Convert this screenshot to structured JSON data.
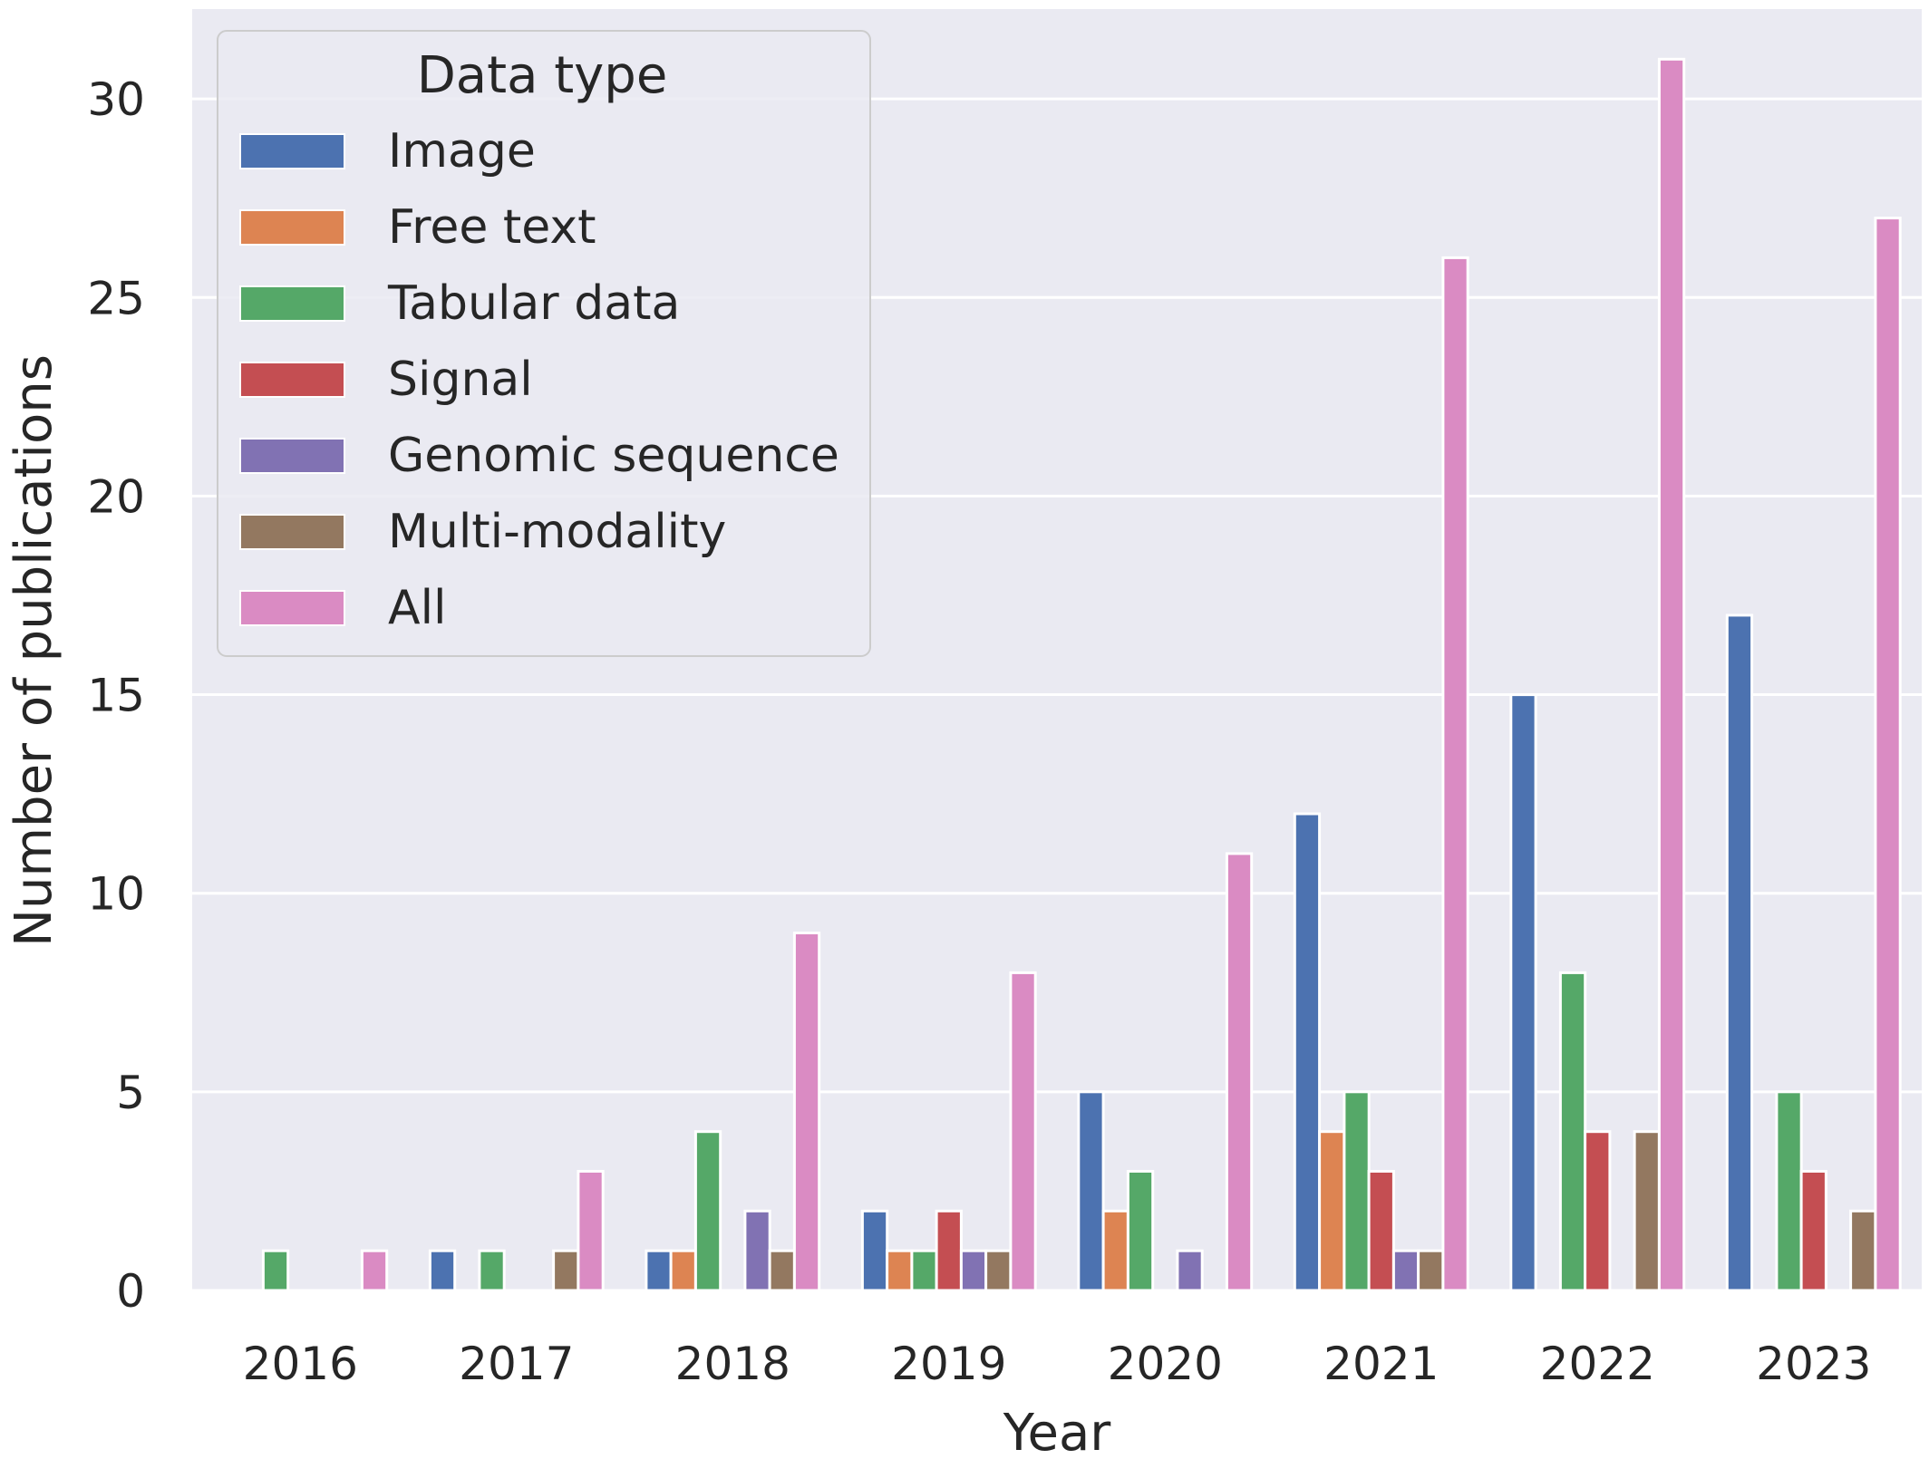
{
  "chart_data": {
    "type": "bar",
    "xlabel": "Year",
    "ylabel": "Number of publications",
    "ylim": [
      0,
      32.5
    ],
    "yticks": [
      0,
      5,
      10,
      15,
      20,
      25,
      30
    ],
    "grid": true,
    "legend_title": "Data type",
    "legend_position": "top-left",
    "background": "#eaeaf2",
    "categories": [
      "2016",
      "2017",
      "2018",
      "2019",
      "2020",
      "2021",
      "2022",
      "2023"
    ],
    "series": [
      {
        "name": "Image",
        "color": "#4c72b0",
        "values": [
          0,
          1,
          1,
          2,
          5,
          12,
          15,
          17
        ]
      },
      {
        "name": "Free text",
        "color": "#dd8452",
        "values": [
          0,
          0,
          1,
          1,
          2,
          4,
          0,
          0
        ]
      },
      {
        "name": "Tabular data",
        "color": "#55a868",
        "values": [
          1,
          1,
          4,
          1,
          3,
          5,
          8,
          5
        ]
      },
      {
        "name": "Signal",
        "color": "#c44e52",
        "values": [
          0,
          0,
          0,
          2,
          0,
          3,
          4,
          3
        ]
      },
      {
        "name": "Genomic sequence",
        "color": "#8172b3",
        "values": [
          0,
          0,
          2,
          1,
          1,
          1,
          0,
          0
        ]
      },
      {
        "name": "Multi-modality",
        "color": "#937860",
        "values": [
          0,
          1,
          1,
          1,
          0,
          1,
          4,
          2
        ]
      },
      {
        "name": "All",
        "color": "#da8bc3",
        "values": [
          1,
          3,
          9,
          8,
          11,
          26,
          31,
          27
        ]
      }
    ]
  }
}
